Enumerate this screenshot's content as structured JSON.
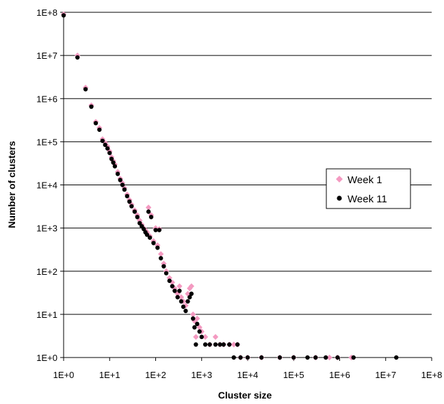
{
  "chart_data": {
    "type": "scatter",
    "title": "",
    "xlabel": "Cluster size",
    "ylabel": "Number of clusters",
    "x_scale": "log",
    "y_scale": "log",
    "xlim": [
      1,
      100000000
    ],
    "ylim": [
      1,
      100000000
    ],
    "x_tick_labels": [
      "1E+0",
      "1E+1",
      "1E+2",
      "1E+3",
      "1E+4",
      "1E+5",
      "1E+6",
      "1E+7",
      "1E+8"
    ],
    "y_tick_labels": [
      "1E+0",
      "1E+1",
      "1E+2",
      "1E+3",
      "1E+4",
      "1E+5",
      "1E+6",
      "1E+7",
      "1E+8"
    ],
    "grid": "horizontal major gridlines",
    "legend_position": "right",
    "series": [
      {
        "name": "Week 1",
        "color": "#f49ac1",
        "marker": "diamond",
        "points": [
          [
            1,
            90000000
          ],
          [
            2,
            10000000
          ],
          [
            3,
            1800000
          ],
          [
            4,
            700000
          ],
          [
            5,
            290000
          ],
          [
            6,
            210000
          ],
          [
            7,
            115000
          ],
          [
            8,
            95000
          ],
          [
            9,
            78000
          ],
          [
            10,
            60000
          ],
          [
            11,
            44000
          ],
          [
            12,
            36000
          ],
          [
            13,
            30000
          ],
          [
            15,
            20000
          ],
          [
            17,
            14000
          ],
          [
            19,
            11000
          ],
          [
            21,
            8500
          ],
          [
            24,
            6000
          ],
          [
            27,
            4500
          ],
          [
            30,
            3500
          ],
          [
            35,
            2600
          ],
          [
            40,
            2000
          ],
          [
            45,
            1500
          ],
          [
            50,
            1200
          ],
          [
            55,
            1000
          ],
          [
            60,
            900
          ],
          [
            65,
            800
          ],
          [
            70,
            3000
          ],
          [
            75,
            650
          ],
          [
            80,
            2000
          ],
          [
            90,
            500
          ],
          [
            100,
            1000
          ],
          [
            110,
            400
          ],
          [
            120,
            950
          ],
          [
            130,
            250
          ],
          [
            150,
            150
          ],
          [
            170,
            100
          ],
          [
            200,
            70
          ],
          [
            230,
            55
          ],
          [
            260,
            40
          ],
          [
            300,
            30
          ],
          [
            330,
            45
          ],
          [
            360,
            25
          ],
          [
            400,
            20
          ],
          [
            450,
            16
          ],
          [
            500,
            30
          ],
          [
            550,
            40
          ],
          [
            600,
            45
          ],
          [
            650,
            10
          ],
          [
            700,
            7
          ],
          [
            750,
            3
          ],
          [
            800,
            8
          ],
          [
            900,
            5
          ],
          [
            1000,
            4
          ],
          [
            1200,
            3
          ],
          [
            1500,
            2
          ],
          [
            2000,
            3
          ],
          [
            2500,
            2
          ],
          [
            3000,
            2
          ],
          [
            4000,
            2
          ],
          [
            5000,
            2
          ],
          [
            6000,
            2
          ],
          [
            7000,
            1
          ],
          [
            10000,
            1
          ],
          [
            20000,
            1
          ],
          [
            50000,
            1
          ],
          [
            100000,
            1
          ],
          [
            300000,
            1
          ],
          [
            600000,
            1
          ],
          [
            900000,
            1
          ],
          [
            1800000,
            1
          ]
        ]
      },
      {
        "name": "Week 11",
        "color": "#000000",
        "marker": "circle",
        "points": [
          [
            1,
            85000000
          ],
          [
            2,
            9000000
          ],
          [
            3,
            1650000
          ],
          [
            4,
            650000
          ],
          [
            5,
            270000
          ],
          [
            6,
            190000
          ],
          [
            7,
            105000
          ],
          [
            8,
            85000
          ],
          [
            9,
            70000
          ],
          [
            10,
            55000
          ],
          [
            11,
            40000
          ],
          [
            12,
            33000
          ],
          [
            13,
            27000
          ],
          [
            15,
            18000
          ],
          [
            17,
            13000
          ],
          [
            19,
            10000
          ],
          [
            21,
            7800
          ],
          [
            24,
            5500
          ],
          [
            27,
            4100
          ],
          [
            30,
            3200
          ],
          [
            35,
            2400
          ],
          [
            40,
            1800
          ],
          [
            45,
            1300
          ],
          [
            50,
            1100
          ],
          [
            55,
            950
          ],
          [
            60,
            800
          ],
          [
            65,
            700
          ],
          [
            70,
            2400
          ],
          [
            75,
            600
          ],
          [
            80,
            1800
          ],
          [
            90,
            450
          ],
          [
            100,
            900
          ],
          [
            110,
            350
          ],
          [
            120,
            900
          ],
          [
            130,
            200
          ],
          [
            150,
            130
          ],
          [
            170,
            90
          ],
          [
            200,
            60
          ],
          [
            230,
            45
          ],
          [
            260,
            35
          ],
          [
            300,
            25
          ],
          [
            330,
            35
          ],
          [
            360,
            20
          ],
          [
            400,
            15
          ],
          [
            450,
            12
          ],
          [
            500,
            20
          ],
          [
            550,
            25
          ],
          [
            600,
            30
          ],
          [
            650,
            8
          ],
          [
            700,
            5
          ],
          [
            750,
            2
          ],
          [
            800,
            6
          ],
          [
            900,
            4
          ],
          [
            1000,
            3
          ],
          [
            1200,
            2
          ],
          [
            1500,
            2
          ],
          [
            2000,
            2
          ],
          [
            2500,
            2
          ],
          [
            3000,
            2
          ],
          [
            4000,
            2
          ],
          [
            5000,
            1
          ],
          [
            6000,
            2
          ],
          [
            7000,
            1
          ],
          [
            10000,
            1
          ],
          [
            20000,
            1
          ],
          [
            50000,
            1
          ],
          [
            100000,
            1
          ],
          [
            200000,
            1
          ],
          [
            300000,
            1
          ],
          [
            500000,
            1
          ],
          [
            900000,
            1
          ],
          [
            2000000,
            1
          ],
          [
            17000000,
            1
          ]
        ]
      }
    ]
  }
}
